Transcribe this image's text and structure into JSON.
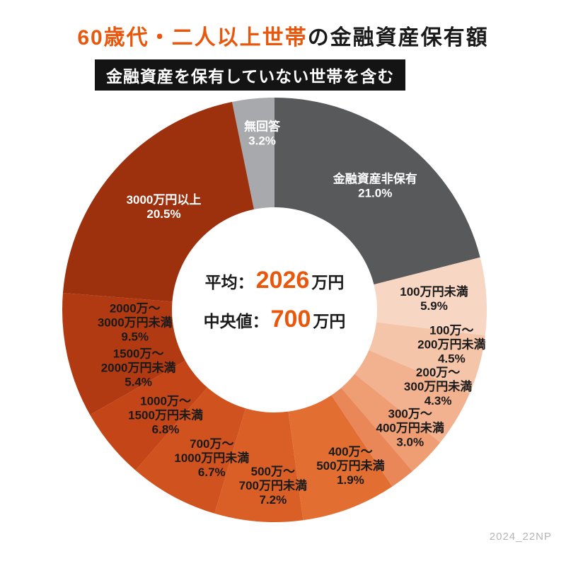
{
  "title": {
    "accent": "60歳代・二人以上世帯",
    "rest": "の金融資産保有額",
    "accent_color": "#e9570c"
  },
  "subtitle": "金融資産を保有していない世帯を含む",
  "center": {
    "mean_label": "平均：",
    "mean_value": "2026",
    "mean_unit": "万円",
    "median_label": "中央値：",
    "median_value": "700",
    "median_unit": "万円",
    "value_color": "#e9570c"
  },
  "watermark": "2024_22NP",
  "chart_data": {
    "type": "pie",
    "donut": true,
    "unit": "%",
    "title": "60歳代・二人以上世帯の金融資産保有額（金融資産を保有していない世帯を含む）",
    "start_angle_deg": 0,
    "direction": "clockwise",
    "center_annotations": {
      "mean": "平均：2026万円",
      "median": "中央値：700万円"
    },
    "segments": [
      {
        "label": "金融資産非保有",
        "label_lines": [
          "金融資産非保有"
        ],
        "value": 21.0,
        "display": "21.0%",
        "color": "#58595b",
        "text_color": "#ffffff"
      },
      {
        "label": "100万円未満",
        "label_lines": [
          "100万円未満"
        ],
        "value": 5.9,
        "display": "5.9%",
        "color": "#f7d6c3",
        "text_color": "#1a1a1a"
      },
      {
        "label": "100万～200万円未満",
        "label_lines": [
          "100万～",
          "200万円未満"
        ],
        "value": 4.5,
        "display": "4.5%",
        "color": "#f5c5a9",
        "text_color": "#1a1a1a"
      },
      {
        "label": "200万～300万円未満",
        "label_lines": [
          "200万～",
          "300万円未満"
        ],
        "value": 4.3,
        "display": "4.3%",
        "color": "#f2b18f",
        "text_color": "#1a1a1a"
      },
      {
        "label": "300万～400万円未満",
        "label_lines": [
          "300万～",
          "400万円未満"
        ],
        "value": 3.0,
        "display": "3.0%",
        "color": "#ef9d73",
        "text_color": "#1a1a1a"
      },
      {
        "label": "400万～500万円未満",
        "label_lines": [
          "400万～",
          "500万円未満"
        ],
        "value": 1.9,
        "display": "1.9%",
        "color": "#ea8758",
        "text_color": "#1a1a1a"
      },
      {
        "label": "500万～700万円未満",
        "label_lines": [
          "500万～",
          "700万円未満"
        ],
        "value": 7.2,
        "display": "7.2%",
        "color": "#e26f31",
        "text_color": "#1a1a1a"
      },
      {
        "label": "700万～1000万円未満",
        "label_lines": [
          "700万～",
          "1000万円未満"
        ],
        "value": 6.7,
        "display": "6.7%",
        "color": "#da5f26",
        "text_color": "#1a1a1a"
      },
      {
        "label": "1000万～1500万円未満",
        "label_lines": [
          "1000万～",
          "1500万円未満"
        ],
        "value": 6.8,
        "display": "6.8%",
        "color": "#d0521e",
        "text_color": "#1a1a1a"
      },
      {
        "label": "1500万～2000万円未満",
        "label_lines": [
          "1500万～",
          "2000万円未満"
        ],
        "value": 5.4,
        "display": "5.4%",
        "color": "#c44618",
        "text_color": "#1a1a1a"
      },
      {
        "label": "2000万～3000万円未満",
        "label_lines": [
          "2000万～",
          "3000万円未満"
        ],
        "value": 9.5,
        "display": "9.5%",
        "color": "#b23a12",
        "text_color": "#1a1a1a"
      },
      {
        "label": "3000万円以上",
        "label_lines": [
          "3000万円以上"
        ],
        "value": 20.5,
        "display": "20.5%",
        "color": "#9d300d",
        "text_color": "#ffffff"
      },
      {
        "label": "無回答",
        "label_lines": [
          "無回答"
        ],
        "value": 3.2,
        "display": "3.2%",
        "color": "#a7a9ac",
        "text_color": "#ffffff"
      }
    ]
  }
}
